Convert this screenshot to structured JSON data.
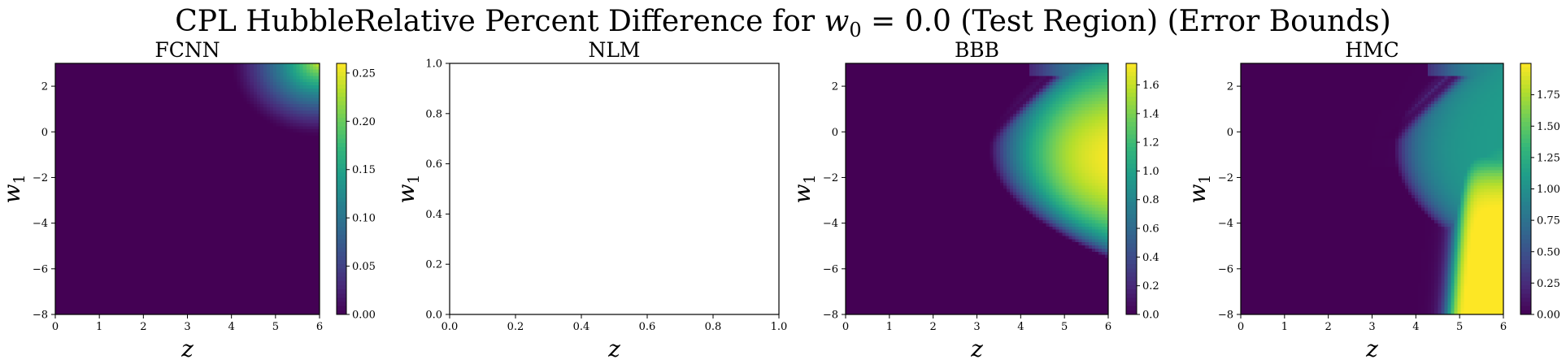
{
  "figure": {
    "title_prefix": "CPL HubbleRelative Percent Difference for ",
    "title_math": "w",
    "title_math_sub": "0",
    "title_suffix": " = 0.0 (Test Region) (Error Bounds)"
  },
  "chart_data": [
    {
      "type": "heatmap",
      "title": "FCNN",
      "xlabel": "z",
      "ylabel": "w",
      "ylabel_sub": "1",
      "xlim": [
        0,
        6
      ],
      "ylim": [
        -8,
        3
      ],
      "xticks": [
        "0",
        "1",
        "2",
        "3",
        "4",
        "5",
        "6"
      ],
      "yticks": [
        "2",
        "0",
        "−2",
        "−4",
        "−6",
        "−8"
      ],
      "ytick_values": [
        2,
        0,
        -2,
        -4,
        -6,
        -8
      ],
      "colormap": "viridis",
      "colorbar": {
        "min": 0.0,
        "max": 0.26,
        "ticks": [
          "0.00",
          "0.05",
          "0.10",
          "0.15",
          "0.20",
          "0.25"
        ],
        "tick_values": [
          0,
          0.05,
          0.1,
          0.15,
          0.2,
          0.25
        ]
      }
    },
    {
      "type": "heatmap",
      "title": "NLM",
      "xlabel": "z",
      "ylabel": "w",
      "ylabel_sub": "1",
      "xlim": [
        0,
        1
      ],
      "ylim": [
        0,
        1
      ],
      "xticks": [
        "0.0",
        "0.2",
        "0.4",
        "0.6",
        "0.8",
        "1.0"
      ],
      "yticks": [
        "1.0",
        "0.8",
        "0.6",
        "0.4",
        "0.2",
        "0.0"
      ],
      "ytick_values": [
        1.0,
        0.8,
        0.6,
        0.4,
        0.2,
        0.0
      ],
      "empty": true
    },
    {
      "type": "heatmap",
      "title": "BBB",
      "xlabel": "z",
      "ylabel": "w",
      "ylabel_sub": "1",
      "xlim": [
        0,
        6
      ],
      "ylim": [
        -8,
        3
      ],
      "xticks": [
        "0",
        "1",
        "2",
        "3",
        "4",
        "5",
        "6"
      ],
      "yticks": [
        "2",
        "0",
        "−2",
        "−4",
        "−6",
        "−8"
      ],
      "ytick_values": [
        2,
        0,
        -2,
        -4,
        -6,
        -8
      ],
      "colormap": "viridis",
      "colorbar": {
        "min": 0.0,
        "max": 1.75,
        "ticks": [
          "0.0",
          "0.2",
          "0.4",
          "0.6",
          "0.8",
          "1.0",
          "1.2",
          "1.4",
          "1.6"
        ],
        "tick_values": [
          0,
          0.2,
          0.4,
          0.6,
          0.8,
          1.0,
          1.2,
          1.4,
          1.6
        ]
      }
    },
    {
      "type": "heatmap",
      "title": "HMC",
      "xlabel": "z",
      "ylabel": "w",
      "ylabel_sub": "1",
      "xlim": [
        0,
        6
      ],
      "ylim": [
        -8,
        3
      ],
      "xticks": [
        "0",
        "1",
        "2",
        "3",
        "4",
        "5",
        "6"
      ],
      "yticks": [
        "2",
        "0",
        "−2",
        "−4",
        "−6",
        "−8"
      ],
      "ytick_values": [
        2,
        0,
        -2,
        -4,
        -6,
        -8
      ],
      "colormap": "viridis",
      "colorbar": {
        "min": 0.0,
        "max": 2.0,
        "ticks": [
          "0.00",
          "0.25",
          "0.50",
          "0.75",
          "1.00",
          "1.25",
          "1.50",
          "1.75"
        ],
        "tick_values": [
          0,
          0.25,
          0.5,
          0.75,
          1.0,
          1.25,
          1.5,
          1.75
        ]
      }
    }
  ]
}
